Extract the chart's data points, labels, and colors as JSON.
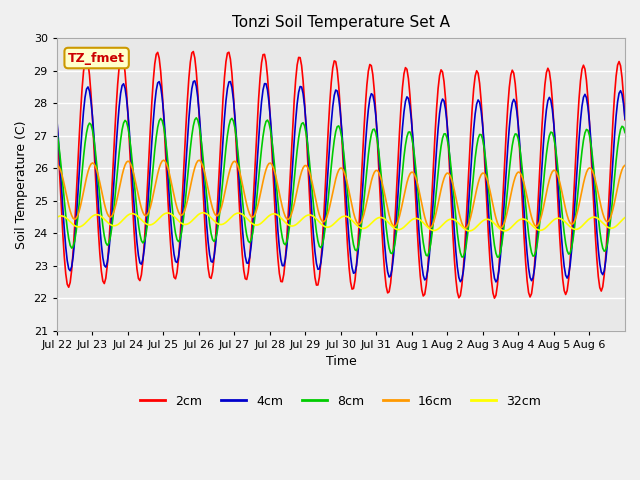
{
  "title": "Tonzi Soil Temperature Set A",
  "xlabel": "Time",
  "ylabel": "Soil Temperature (C)",
  "ylim": [
    21.0,
    30.0
  ],
  "yticks": [
    21.0,
    22.0,
    23.0,
    24.0,
    25.0,
    26.0,
    27.0,
    28.0,
    29.0,
    30.0
  ],
  "bg_color": "#e8e8e8",
  "grid_color": "#ffffff",
  "annotation_text": "TZ_fmet",
  "annotation_bg": "#ffffcc",
  "annotation_border": "#cc9900",
  "series_colors": [
    "#ff0000",
    "#0000cc",
    "#00cc00",
    "#ff9900",
    "#ffff00"
  ],
  "series_labels": [
    "2cm",
    "4cm",
    "8cm",
    "16cm",
    "32cm"
  ],
  "xtick_positions": [
    0,
    1,
    2,
    3,
    4,
    5,
    6,
    7,
    8,
    9,
    10,
    11,
    12,
    13,
    14,
    15
  ],
  "xtick_labels": [
    "Jul 22",
    "Jul 23",
    "Jul 24",
    "Jul 25",
    "Jul 26",
    "Jul 27",
    "Jul 28",
    "Jul 29",
    "Jul 30",
    "Jul 31",
    "Aug 1",
    "Aug 2",
    "Aug 3",
    "Aug 4",
    "Aug 5",
    "Aug 6"
  ],
  "n_points": 384,
  "xlim": [
    0,
    16
  ]
}
